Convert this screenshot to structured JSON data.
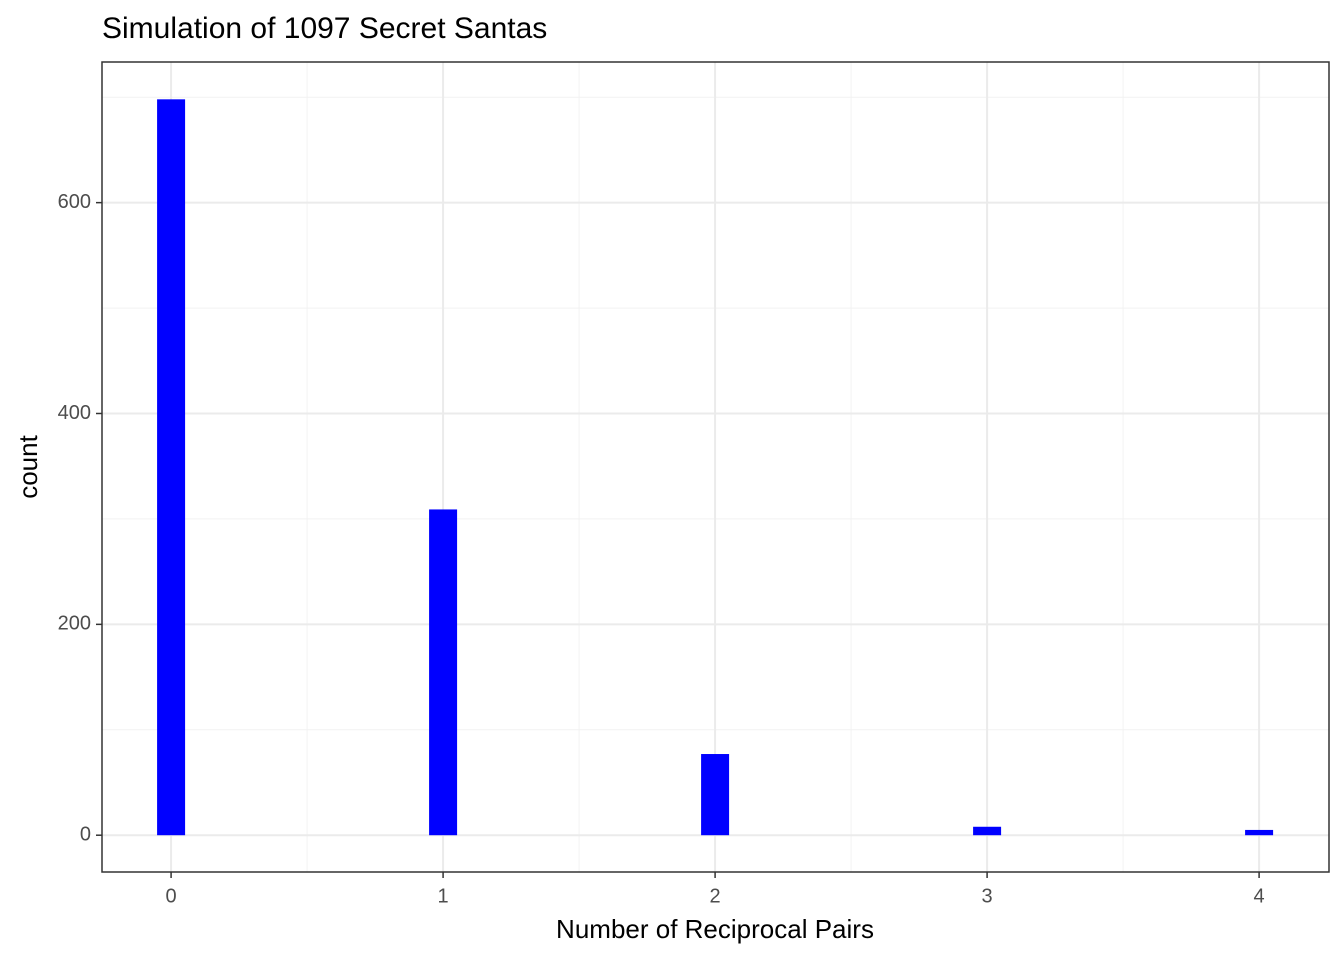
{
  "chart_data": {
    "type": "bar",
    "title": "Simulation of 1097 Secret Santas",
    "x_label": "Number of Reciprocal Pairs",
    "y_label": "count",
    "x": [
      0,
      1,
      2,
      3,
      4
    ],
    "values": [
      698,
      309,
      77,
      8,
      5
    ],
    "color": "#0000ff",
    "xlim": [
      -0.254,
      4.257
    ],
    "xticks": [
      0,
      1,
      2,
      3,
      4
    ],
    "x_minor": [
      0.5,
      1.5,
      2.5,
      3.5
    ],
    "ylim": [
      -34.9,
      733.4
    ],
    "yticks": [
      0,
      200,
      400,
      600
    ],
    "y_minor": [
      100,
      300,
      500,
      700
    ],
    "grid": true
  }
}
